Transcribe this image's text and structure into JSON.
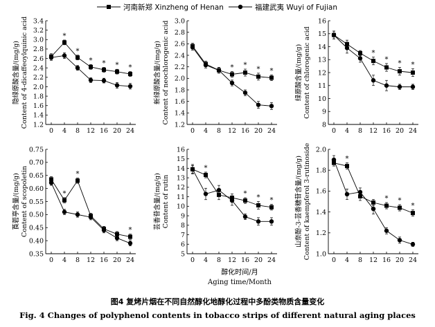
{
  "legend": {
    "henan": "河南新郑 Xinzheng of Henan",
    "fujian": "福建武夷 Wuyi of Fujian"
  },
  "xlabel": {
    "cn": "醇化时间/月",
    "en": "Aging time/Month"
  },
  "caption": {
    "cn": "图4   复烤片烟在不同自然醇化地醇化过程中多酚类物质含量变化",
    "en": "Fig. 4    Changes of polyphenol contents in tobacco strips of different natural aging places"
  },
  "chart_data": [
    {
      "type": "line",
      "ylabel_cn": "隐绿原酸含量/(mg/g)",
      "ylabel_en": "Content of 4-dicaffeoylquinic acid",
      "x": [
        0,
        4,
        8,
        12,
        16,
        20,
        24
      ],
      "xticks": [
        "0",
        "4",
        "8",
        "12",
        "16",
        "20",
        "24"
      ],
      "ylim": [
        1.2,
        3.4
      ],
      "yticks": [
        "1.2",
        "1.4",
        "1.6",
        "1.8",
        "2.0",
        "2.2",
        "2.4",
        "2.6",
        "2.8",
        "3.0",
        "3.2",
        "3.4"
      ],
      "series": [
        {
          "name": "河南新郑 Xinzheng of Henan",
          "marker": "square",
          "values": [
            2.64,
            2.94,
            2.62,
            2.42,
            2.36,
            2.32,
            2.27
          ],
          "errors": [
            0.06,
            0.05,
            0.05,
            0.05,
            0.05,
            0.05,
            0.05
          ]
        },
        {
          "name": "福建武夷 Wuyi of Fujian",
          "marker": "circle",
          "values": [
            2.62,
            2.66,
            2.4,
            2.14,
            2.13,
            2.03,
            2.01
          ],
          "errors": [
            0.06,
            0.06,
            0.05,
            0.05,
            0.05,
            0.06,
            0.06
          ]
        }
      ],
      "significance": [
        "",
        "*",
        "*",
        "*",
        "*",
        "*",
        "*"
      ]
    },
    {
      "type": "line",
      "ylabel_cn": "新绿原酸含量/(mg/g)",
      "ylabel_en": "Content of neochlorogenic acid",
      "x": [
        0,
        4,
        8,
        12,
        16,
        20,
        24
      ],
      "xticks": [
        "0",
        "4",
        "8",
        "12",
        "16",
        "20",
        "24"
      ],
      "ylim": [
        1.2,
        3.0
      ],
      "yticks": [
        "1.2",
        "1.4",
        "1.6",
        "1.8",
        "2.0",
        "2.2",
        "2.4",
        "2.6",
        "2.8",
        "3.0"
      ],
      "series": [
        {
          "name": "河南新郑 Xinzheng of Henan",
          "marker": "square",
          "values": [
            2.56,
            2.25,
            2.14,
            2.07,
            2.1,
            2.03,
            2.01
          ],
          "errors": [
            0.05,
            0.05,
            0.05,
            0.05,
            0.06,
            0.06,
            0.05
          ]
        },
        {
          "name": "福建武夷 Wuyi of Fujian",
          "marker": "circle",
          "values": [
            2.54,
            2.23,
            2.14,
            1.92,
            1.75,
            1.54,
            1.52
          ],
          "errors": [
            0.05,
            0.05,
            0.05,
            0.05,
            0.05,
            0.06,
            0.06
          ]
        }
      ],
      "significance": [
        "",
        "",
        "",
        "*",
        "*",
        "*",
        "*"
      ]
    },
    {
      "type": "line",
      "ylabel_cn": "绿原酸含量/(mg/g)",
      "ylabel_en": "Content of chlorogenic acid",
      "x": [
        0,
        4,
        8,
        12,
        16,
        20,
        24
      ],
      "xticks": [
        "0",
        "4",
        "8",
        "12",
        "16",
        "20",
        "24"
      ],
      "ylim": [
        8,
        16
      ],
      "yticks": [
        "8",
        "9",
        "10",
        "11",
        "12",
        "13",
        "14",
        "15",
        "16"
      ],
      "series": [
        {
          "name": "河南新郑 Xinzheng of Henan",
          "marker": "square",
          "values": [
            14.9,
            14.2,
            13.5,
            12.9,
            12.4,
            12.1,
            12.0
          ],
          "errors": [
            0.3,
            0.3,
            0.2,
            0.3,
            0.3,
            0.3,
            0.3
          ]
        },
        {
          "name": "福建武夷 Wuyi of Fujian",
          "marker": "circle",
          "values": [
            14.9,
            13.9,
            13.1,
            11.4,
            11.0,
            10.9,
            10.9
          ],
          "errors": [
            0.3,
            0.4,
            0.3,
            0.4,
            0.4,
            0.2,
            0.2
          ]
        }
      ],
      "significance": [
        "",
        "",
        "",
        "*",
        "*",
        "*",
        "*"
      ]
    },
    {
      "type": "line",
      "ylabel_cn": "莨菪亭含量/(mg/g)",
      "ylabel_en": "Content of scopoletin",
      "x": [
        0,
        4,
        8,
        12,
        16,
        20,
        24
      ],
      "xticks": [
        "0",
        "4",
        "8",
        "12",
        "16",
        "20",
        "24"
      ],
      "ylim": [
        0.35,
        0.75
      ],
      "yticks": [
        "0.35",
        "0.40",
        "0.45",
        "0.50",
        "0.55",
        "0.60",
        "0.65",
        "0.70",
        "0.75"
      ],
      "series": [
        {
          "name": "河南新郑 Xinzheng of Henan",
          "marker": "square",
          "values": [
            0.635,
            0.555,
            0.63,
            0.495,
            0.445,
            0.425,
            0.415
          ],
          "errors": [
            0.01,
            0.01,
            0.01,
            0.01,
            0.01,
            0.01,
            0.01
          ]
        },
        {
          "name": "福建武夷 Wuyi of Fujian",
          "marker": "circle",
          "values": [
            0.622,
            0.51,
            0.5,
            0.49,
            0.44,
            0.41,
            0.39
          ],
          "errors": [
            0.01,
            0.01,
            0.01,
            0.01,
            0.01,
            0.01,
            0.01
          ]
        }
      ],
      "significance": [
        "",
        "*",
        "*",
        "",
        "",
        "",
        "*"
      ]
    },
    {
      "type": "line",
      "ylabel_cn": "芸香苷含量/(mg/g)",
      "ylabel_en": "Content of rutin",
      "x": [
        0,
        4,
        8,
        12,
        16,
        20,
        24
      ],
      "xticks": [
        "0",
        "4",
        "8",
        "12",
        "16",
        "20",
        "24"
      ],
      "ylim": [
        5,
        16
      ],
      "yticks": [
        "5",
        "6",
        "7",
        "8",
        "9",
        "10",
        "11",
        "12",
        "13",
        "14",
        "15",
        "16"
      ],
      "series": [
        {
          "name": "河南新郑 Xinzheng of Henan",
          "marker": "square",
          "values": [
            13.9,
            13.3,
            11.2,
            10.9,
            10.6,
            10.1,
            9.9
          ],
          "errors": [
            0.4,
            0.3,
            0.5,
            0.4,
            0.3,
            0.4,
            0.3
          ]
        },
        {
          "name": "福建武夷 Wuyi of Fujian",
          "marker": "circle",
          "values": [
            13.9,
            11.3,
            11.7,
            10.6,
            8.9,
            8.4,
            8.4
          ],
          "errors": [
            0.5,
            0.6,
            0.5,
            0.5,
            0.3,
            0.4,
            0.4
          ]
        }
      ],
      "significance": [
        "",
        "*",
        "",
        "",
        "*",
        "*",
        "*"
      ]
    },
    {
      "type": "line",
      "ylabel_cn": "山奈酚-3-芸香糖苷含量/(mg/g)",
      "ylabel_en": "Content of kaempferol 3-rutinoside",
      "x": [
        0,
        4,
        8,
        12,
        16,
        20,
        24
      ],
      "xticks": [
        "0",
        "4",
        "8",
        "12",
        "16",
        "20",
        "24"
      ],
      "ylim": [
        1.0,
        2.0
      ],
      "yticks": [
        "1.0",
        "1.2",
        "1.4",
        "1.6",
        "1.8",
        "2.0"
      ],
      "series": [
        {
          "name": "河南新郑 Xinzheng of Henan",
          "marker": "square",
          "values": [
            1.87,
            1.84,
            1.55,
            1.49,
            1.46,
            1.44,
            1.39
          ],
          "errors": [
            0.03,
            0.03,
            0.04,
            0.03,
            0.03,
            0.03,
            0.03
          ]
        },
        {
          "name": "福建武夷 Wuyi of Fujian",
          "marker": "circle",
          "values": [
            1.9,
            1.57,
            1.59,
            1.43,
            1.22,
            1.13,
            1.09
          ],
          "errors": [
            0.04,
            0.05,
            0.04,
            0.05,
            0.03,
            0.03,
            0.02
          ]
        }
      ],
      "significance": [
        "",
        "*",
        "",
        "",
        "*",
        "*",
        "*"
      ]
    }
  ]
}
